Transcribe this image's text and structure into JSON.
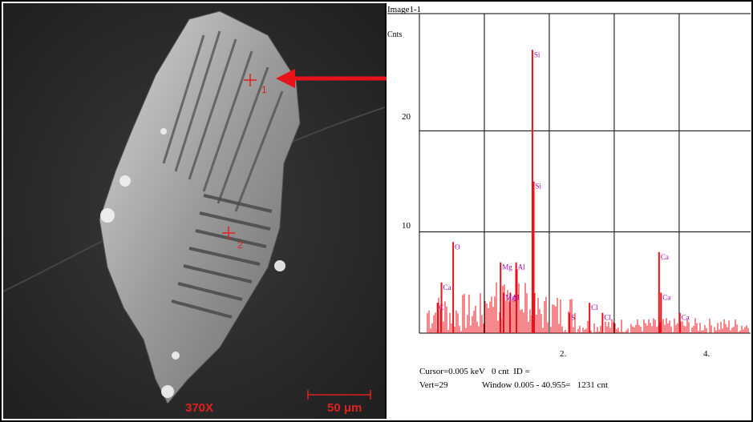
{
  "sem": {
    "magnification": "370X",
    "scale_bar": "50 μm",
    "spot_1": "1",
    "spot_2": "2"
  },
  "eds": {
    "title": "Image1-1",
    "y_unit": "Cnts",
    "y_ticks": [
      "20",
      "10"
    ],
    "x_ticks": [
      "2.",
      "4."
    ],
    "cursor_text": "Cursor=0.005 keV   0 cnt  ID =",
    "vert_text": "Vert=29",
    "window_text": "Window 0.005 - 40.955=   1231 cnt",
    "peaks": [
      {
        "label": "Si",
        "kev": 1.74,
        "counts": 28
      },
      {
        "label": "Si",
        "kev": 1.76,
        "counts": 15
      },
      {
        "label": "O",
        "kev": 0.52,
        "counts": 9
      },
      {
        "label": "C",
        "kev": 0.28,
        "counts": 3
      },
      {
        "label": "Ca",
        "kev": 0.34,
        "counts": 5
      },
      {
        "label": "Mg",
        "kev": 1.25,
        "counts": 7
      },
      {
        "label": "Al",
        "kev": 1.49,
        "counts": 7
      },
      {
        "label": "Mg",
        "kev": 1.3,
        "counts": 4
      },
      {
        "label": "Al",
        "kev": 1.4,
        "counts": 4
      },
      {
        "label": "S",
        "kev": 2.31,
        "counts": 2
      },
      {
        "label": "Cl",
        "kev": 2.62,
        "counts": 3
      },
      {
        "label": "Cl",
        "kev": 2.82,
        "counts": 2
      },
      {
        "label": "Ca",
        "kev": 3.69,
        "counts": 8
      },
      {
        "label": "Ca",
        "kev": 3.72,
        "counts": 4
      },
      {
        "label": "Ca",
        "kev": 4.01,
        "counts": 2
      }
    ],
    "colors": {
      "spectrum": "#e8121b",
      "labels": "#b000b0",
      "arrow": "#e8121b"
    }
  }
}
